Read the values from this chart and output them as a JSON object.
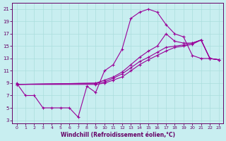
{
  "bg_color": "#c8eef0",
  "line_color": "#990099",
  "grid_color": "#aadddd",
  "xlabel": "Windchill (Refroidissement éolien,°C)",
  "xlabel_color": "#660066",
  "tick_color": "#660066",
  "xlim": [
    -0.5,
    23.5
  ],
  "ylim": [
    2.5,
    22
  ],
  "yticks": [
    3,
    5,
    7,
    9,
    11,
    13,
    15,
    17,
    19,
    21
  ],
  "xticks": [
    0,
    1,
    2,
    3,
    4,
    5,
    6,
    7,
    8,
    9,
    10,
    11,
    12,
    13,
    14,
    15,
    16,
    17,
    18,
    19,
    20,
    21,
    22,
    23
  ],
  "line1_x": [
    0,
    1,
    2,
    3,
    4,
    5,
    6,
    7,
    8,
    9,
    10,
    11,
    12,
    13,
    14,
    15,
    16,
    17,
    18,
    19,
    20,
    21,
    22,
    23
  ],
  "line1_y": [
    9.0,
    7.0,
    7.0,
    5.0,
    5.0,
    5.0,
    5.0,
    3.5,
    8.5,
    7.5,
    11.0,
    12.0,
    14.5,
    19.5,
    20.5,
    21.0,
    20.5,
    18.5,
    17.0,
    16.5,
    13.5,
    13.0,
    13.0,
    12.8
  ],
  "line2_x": [
    0,
    9,
    10,
    11,
    12,
    13,
    14,
    15,
    16,
    17,
    18,
    19,
    20,
    21,
    22,
    23
  ],
  "line2_y": [
    8.8,
    9.0,
    9.5,
    10.0,
    10.8,
    12.0,
    13.2,
    14.2,
    15.0,
    17.0,
    15.8,
    15.5,
    15.5,
    16.0,
    13.0,
    12.8
  ],
  "line3_x": [
    0,
    9,
    10,
    11,
    12,
    13,
    14,
    15,
    16,
    17,
    18,
    19,
    20,
    21,
    22,
    23
  ],
  "line3_y": [
    8.8,
    9.0,
    9.2,
    9.8,
    10.5,
    11.5,
    12.5,
    13.2,
    14.0,
    14.8,
    15.0,
    15.2,
    15.5,
    16.0,
    13.0,
    12.8
  ],
  "line4_x": [
    0,
    9,
    10,
    11,
    12,
    13,
    14,
    15,
    16,
    17,
    18,
    19,
    20,
    21,
    22,
    23
  ],
  "line4_y": [
    8.8,
    8.8,
    9.0,
    9.5,
    10.0,
    11.0,
    12.0,
    12.8,
    13.5,
    14.2,
    14.8,
    15.0,
    15.3,
    16.0,
    13.0,
    12.8
  ]
}
